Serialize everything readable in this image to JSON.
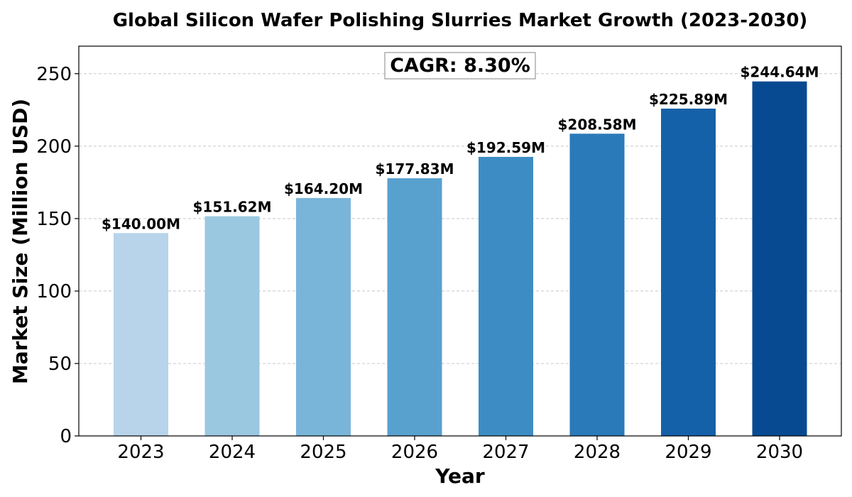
{
  "chart_data": {
    "type": "bar",
    "title": "Global Silicon Wafer Polishing Slurries Market Growth (2023-2030)",
    "xlabel": "Year",
    "ylabel": "Market Size (Million USD)",
    "categories": [
      "2023",
      "2024",
      "2025",
      "2026",
      "2027",
      "2028",
      "2029",
      "2030"
    ],
    "values": [
      140.0,
      151.62,
      164.2,
      177.83,
      192.59,
      208.58,
      225.89,
      244.64
    ],
    "data_labels": [
      "$140.00M",
      "$151.62M",
      "$164.20M",
      "$177.83M",
      "$192.59M",
      "$208.58M",
      "$225.89M",
      "$244.64M"
    ],
    "bar_colors": [
      "#b7d4ea",
      "#9ac8e0",
      "#79b5d9",
      "#58a1cf",
      "#3d8dc4",
      "#2a79b8",
      "#1561a9",
      "#084a91"
    ],
    "ylim": [
      0,
      269
    ],
    "yticks": [
      0,
      50,
      100,
      150,
      200,
      250
    ],
    "grid": true,
    "annotation": "CAGR: 8.30%"
  }
}
